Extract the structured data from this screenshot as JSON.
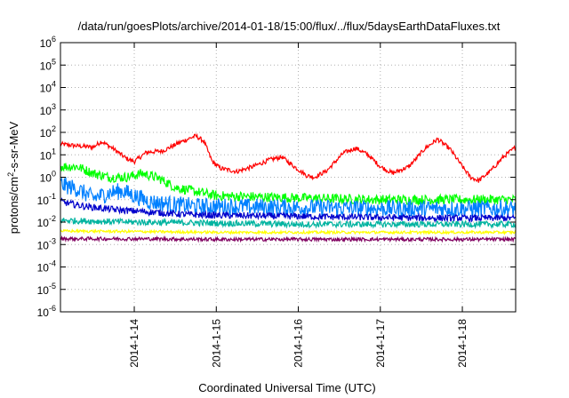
{
  "chart_data": {
    "type": "line",
    "title": "/data/run/goesPlots/archive/2014-01-18/15:00/flux/../flux/5daysEarthDataFluxes.txt",
    "xlabel": "Coordinated Universal Time (UTC)",
    "ylabel_prefix": "protons/cm",
    "ylabel_sup": "2",
    "ylabel_suffix": "-s-sr-MeV",
    "y_scale": "log",
    "ylim": [
      1e-06,
      1000000.0
    ],
    "xlim": [
      13.1,
      18.65
    ],
    "grid": true,
    "y_ticks": [
      {
        "value": -6,
        "base": "10",
        "exp": "-6"
      },
      {
        "value": -5,
        "base": "10",
        "exp": "-5"
      },
      {
        "value": -4,
        "base": "10",
        "exp": "-4"
      },
      {
        "value": -3,
        "base": "10",
        "exp": "-3"
      },
      {
        "value": -2,
        "base": "10",
        "exp": "-2"
      },
      {
        "value": -1,
        "base": "10",
        "exp": "-1"
      },
      {
        "value": 0,
        "base": "10",
        "exp": "0"
      },
      {
        "value": 1,
        "base": "10",
        "exp": "1"
      },
      {
        "value": 2,
        "base": "10",
        "exp": "2"
      },
      {
        "value": 3,
        "base": "10",
        "exp": "3"
      },
      {
        "value": 4,
        "base": "10",
        "exp": "4"
      },
      {
        "value": 5,
        "base": "10",
        "exp": "5"
      },
      {
        "value": 6,
        "base": "10",
        "exp": "6"
      }
    ],
    "x_ticks": [
      {
        "value": 14,
        "label": "2014-1-14"
      },
      {
        "value": 15,
        "label": "2014-1-15"
      },
      {
        "value": 16,
        "label": "2014-1-16"
      },
      {
        "value": 17,
        "label": "2014-1-17"
      },
      {
        "value": 18,
        "label": "2014-1-18"
      }
    ],
    "series": [
      {
        "color": "#ff0000",
        "noise": 0.1,
        "points": [
          [
            13.1,
            30
          ],
          [
            13.3,
            25
          ],
          [
            13.5,
            22
          ],
          [
            13.6,
            40
          ],
          [
            13.75,
            18
          ],
          [
            13.9,
            7
          ],
          [
            14.0,
            5
          ],
          [
            14.15,
            13
          ],
          [
            14.35,
            15
          ],
          [
            14.55,
            35
          ],
          [
            14.75,
            70
          ],
          [
            14.85,
            40
          ],
          [
            14.95,
            5
          ],
          [
            15.05,
            2.5
          ],
          [
            15.25,
            1.8
          ],
          [
            15.45,
            3
          ],
          [
            15.65,
            6
          ],
          [
            15.8,
            8
          ],
          [
            15.95,
            3
          ],
          [
            16.1,
            1.2
          ],
          [
            16.2,
            1.0
          ],
          [
            16.35,
            2
          ],
          [
            16.55,
            12
          ],
          [
            16.7,
            20
          ],
          [
            16.85,
            10
          ],
          [
            17.0,
            3
          ],
          [
            17.15,
            1.5
          ],
          [
            17.35,
            3
          ],
          [
            17.55,
            20
          ],
          [
            17.7,
            50
          ],
          [
            17.85,
            18
          ],
          [
            18.0,
            3
          ],
          [
            18.1,
            1
          ],
          [
            18.2,
            0.7
          ],
          [
            18.35,
            2
          ],
          [
            18.5,
            8
          ],
          [
            18.65,
            22
          ]
        ]
      },
      {
        "color": "#00ff00",
        "noise": 0.22,
        "points": [
          [
            13.1,
            3
          ],
          [
            13.3,
            3
          ],
          [
            13.5,
            1.5
          ],
          [
            13.7,
            1.0
          ],
          [
            13.9,
            1.0
          ],
          [
            14.1,
            1.5
          ],
          [
            14.3,
            0.9
          ],
          [
            14.5,
            0.35
          ],
          [
            14.7,
            0.25
          ],
          [
            15.0,
            0.15
          ],
          [
            16.0,
            0.12
          ],
          [
            17.0,
            0.1
          ],
          [
            18.0,
            0.1
          ],
          [
            18.65,
            0.1
          ]
        ]
      },
      {
        "color": "#0080ff",
        "noise": 0.38,
        "points": [
          [
            13.1,
            0.5
          ],
          [
            13.3,
            0.3
          ],
          [
            13.5,
            0.12
          ],
          [
            13.7,
            0.2
          ],
          [
            13.85,
            0.25
          ],
          [
            14.0,
            0.15
          ],
          [
            14.2,
            0.08
          ],
          [
            14.5,
            0.06
          ],
          [
            14.8,
            0.05
          ],
          [
            15.0,
            0.05
          ],
          [
            16.0,
            0.045
          ],
          [
            17.0,
            0.04
          ],
          [
            18.0,
            0.04
          ],
          [
            18.65,
            0.04
          ]
        ]
      },
      {
        "color": "#0000cc",
        "noise": 0.15,
        "points": [
          [
            13.1,
            0.08
          ],
          [
            13.4,
            0.05
          ],
          [
            13.8,
            0.035
          ],
          [
            14.2,
            0.028
          ],
          [
            14.6,
            0.022
          ],
          [
            15.0,
            0.02
          ],
          [
            16.0,
            0.018
          ],
          [
            17.0,
            0.016
          ],
          [
            18.0,
            0.015
          ],
          [
            18.65,
            0.015
          ]
        ]
      },
      {
        "color": "#00b3a0",
        "noise": 0.14,
        "points": [
          [
            13.1,
            0.012
          ],
          [
            13.5,
            0.011
          ],
          [
            14.0,
            0.01
          ],
          [
            15.0,
            0.009
          ],
          [
            16.0,
            0.008
          ],
          [
            17.0,
            0.008
          ],
          [
            18.0,
            0.008
          ],
          [
            18.65,
            0.008
          ]
        ]
      },
      {
        "color": "#ffff00",
        "noise": 0.06,
        "points": [
          [
            13.1,
            0.004
          ],
          [
            14.0,
            0.0038
          ],
          [
            15.0,
            0.0035
          ],
          [
            16.0,
            0.0035
          ],
          [
            17.0,
            0.0035
          ],
          [
            18.0,
            0.0035
          ],
          [
            18.65,
            0.0035
          ]
        ]
      },
      {
        "color": "#800060",
        "noise": 0.08,
        "points": [
          [
            13.1,
            0.0018
          ],
          [
            14.0,
            0.0018
          ],
          [
            15.0,
            0.0017
          ],
          [
            16.0,
            0.0017
          ],
          [
            17.0,
            0.0017
          ],
          [
            18.0,
            0.0017
          ],
          [
            18.65,
            0.0017
          ]
        ]
      }
    ]
  }
}
